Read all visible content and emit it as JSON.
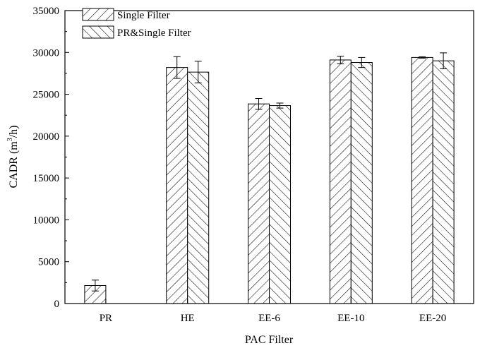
{
  "chart_data": {
    "type": "bar",
    "xlabel": "PAC Filter",
    "ylabel_main": "CADR (m",
    "ylabel_sup": "3",
    "ylabel_tail": "/h)",
    "ylim": [
      0,
      35000
    ],
    "yticks": [
      0,
      5000,
      10000,
      15000,
      20000,
      25000,
      30000,
      35000
    ],
    "categories": [
      "PR",
      "HE",
      "EE-6",
      "EE-10",
      "EE-20"
    ],
    "series": [
      {
        "name": "Single Filter",
        "pattern": "forward-hatch",
        "values": [
          2150,
          28200,
          23850,
          29100,
          29400
        ],
        "errors": [
          650,
          1300,
          650,
          450,
          80
        ]
      },
      {
        "name": "PR&Single Filter",
        "pattern": "back-hatch",
        "values": [
          null,
          27650,
          23650,
          28800,
          29000
        ],
        "errors": [
          null,
          1300,
          300,
          600,
          950
        ]
      }
    ],
    "legend_position": "top-left",
    "grid": false,
    "colors": {
      "bar_fill": "#ffffff",
      "stroke": "#000000"
    }
  }
}
